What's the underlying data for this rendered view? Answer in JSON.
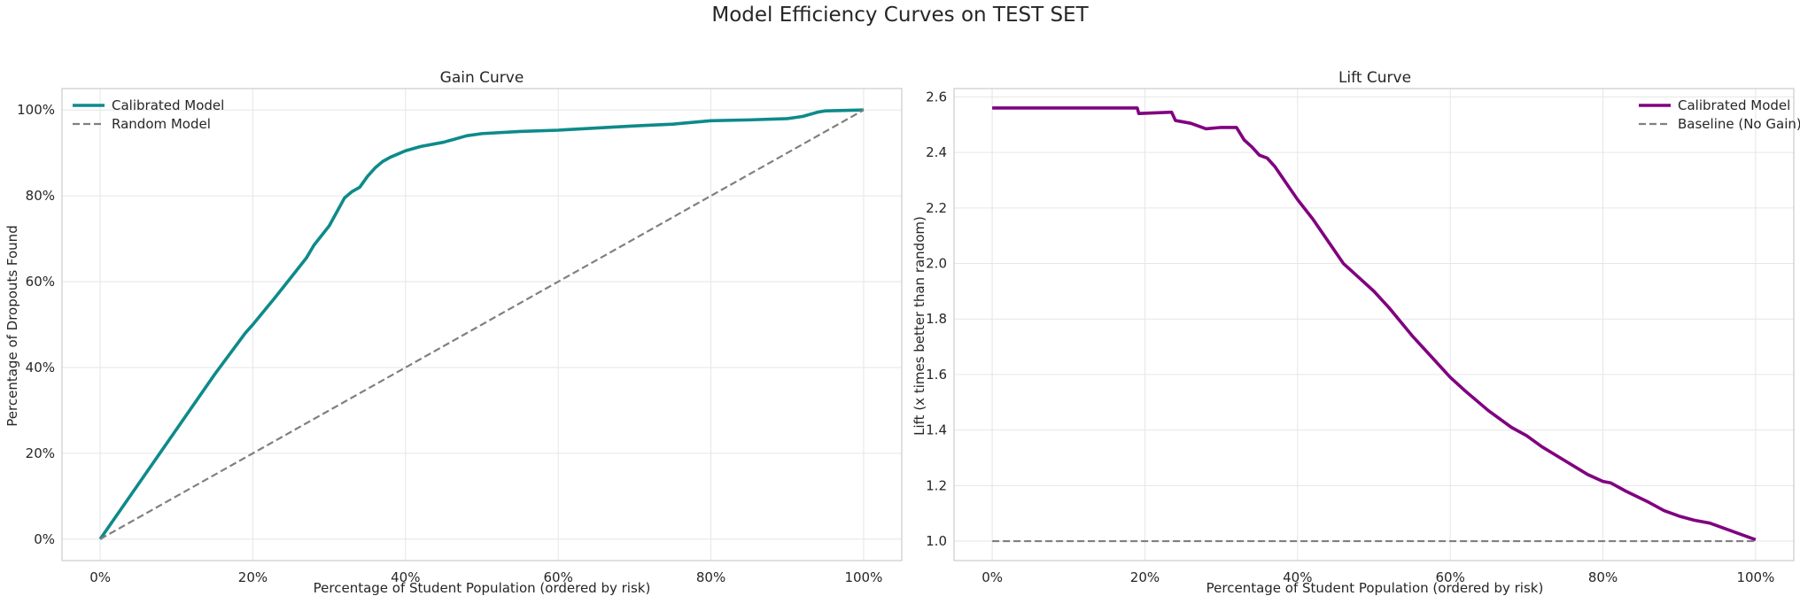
{
  "figure": {
    "suptitle": "Model Efficiency Curves on TEST SET"
  },
  "colors": {
    "calibrated_gain": "#0e8a8a",
    "calibrated_lift": "#800080",
    "baseline": "#808080",
    "grid": "#e6e6e6",
    "frame": "#cccccc"
  },
  "chart_data": [
    {
      "type": "line",
      "title": "Gain Curve",
      "xlabel": "Percentage of Student Population (ordered by risk)",
      "ylabel": "Percentage of Dropouts Found",
      "xlim": [
        -5,
        105
      ],
      "ylim": [
        -5,
        105
      ],
      "xticks": [
        0,
        20,
        40,
        60,
        80,
        100
      ],
      "yticks": [
        0,
        20,
        40,
        60,
        80,
        100
      ],
      "xtick_labels": [
        "0%",
        "20%",
        "40%",
        "60%",
        "80%",
        "100%"
      ],
      "ytick_labels": [
        "0%",
        "20%",
        "40%",
        "60%",
        "80%",
        "100%"
      ],
      "grid": true,
      "legend_position": "upper-left",
      "series": [
        {
          "name": "Calibrated Model",
          "style": "solid",
          "color": "#0e8a8a",
          "x": [
            0,
            5,
            10,
            15,
            19,
            20,
            23,
            25,
            27,
            28,
            30,
            32,
            33,
            34,
            35,
            36,
            37,
            38,
            40,
            42,
            45,
            48,
            50,
            55,
            60,
            65,
            70,
            75,
            80,
            85,
            90,
            92,
            94,
            95,
            100
          ],
          "y": [
            0,
            12.8,
            25.6,
            38.4,
            48,
            50,
            56.5,
            61,
            65.5,
            68.5,
            73,
            79.5,
            81,
            82,
            84.5,
            86.5,
            88,
            89,
            90.5,
            91.5,
            92.5,
            94,
            94.5,
            95,
            95.3,
            95.8,
            96.3,
            96.7,
            97.5,
            97.7,
            98,
            98.5,
            99.5,
            99.8,
            100
          ]
        },
        {
          "name": "Random Model",
          "style": "dashed",
          "color": "#808080",
          "x": [
            0,
            100
          ],
          "y": [
            0,
            100
          ]
        }
      ]
    },
    {
      "type": "line",
      "title": "Lift Curve",
      "xlabel": "Percentage of Student Population (ordered by risk)",
      "ylabel": "Lift (x times better than random)",
      "xlim": [
        -5,
        105
      ],
      "ylim": [
        0.93,
        2.63
      ],
      "xticks": [
        0,
        20,
        40,
        60,
        80,
        100
      ],
      "yticks": [
        1.0,
        1.2,
        1.4,
        1.6,
        1.8,
        2.0,
        2.2,
        2.4,
        2.6
      ],
      "xtick_labels": [
        "0%",
        "20%",
        "40%",
        "60%",
        "80%",
        "100%"
      ],
      "ytick_labels": [
        "1.0",
        "1.2",
        "1.4",
        "1.6",
        "1.8",
        "2.0",
        "2.2",
        "2.4",
        "2.6"
      ],
      "grid": true,
      "legend_position": "upper-right",
      "series": [
        {
          "name": "Calibrated Model",
          "style": "solid",
          "color": "#800080",
          "x": [
            0,
            19,
            19.2,
            23.5,
            24,
            26,
            28,
            30,
            32,
            33,
            34,
            35,
            36,
            37,
            38,
            39,
            40,
            42,
            44,
            46,
            48,
            50,
            52,
            55,
            58,
            60,
            62,
            65,
            68,
            70,
            72,
            75,
            78,
            80,
            81,
            83,
            86,
            88,
            90,
            92,
            94,
            96,
            98,
            100
          ],
          "y": [
            2.56,
            2.56,
            2.54,
            2.545,
            2.515,
            2.505,
            2.485,
            2.49,
            2.49,
            2.445,
            2.42,
            2.39,
            2.38,
            2.35,
            2.31,
            2.27,
            2.23,
            2.16,
            2.08,
            2.0,
            1.95,
            1.9,
            1.84,
            1.74,
            1.65,
            1.59,
            1.54,
            1.47,
            1.41,
            1.38,
            1.34,
            1.29,
            1.24,
            1.215,
            1.21,
            1.18,
            1.14,
            1.11,
            1.09,
            1.075,
            1.065,
            1.045,
            1.025,
            1.005
          ]
        },
        {
          "name": "Baseline (No Gain)",
          "style": "dashed",
          "color": "#808080",
          "x": [
            0,
            100
          ],
          "y": [
            1.0,
            1.0
          ]
        }
      ]
    }
  ]
}
